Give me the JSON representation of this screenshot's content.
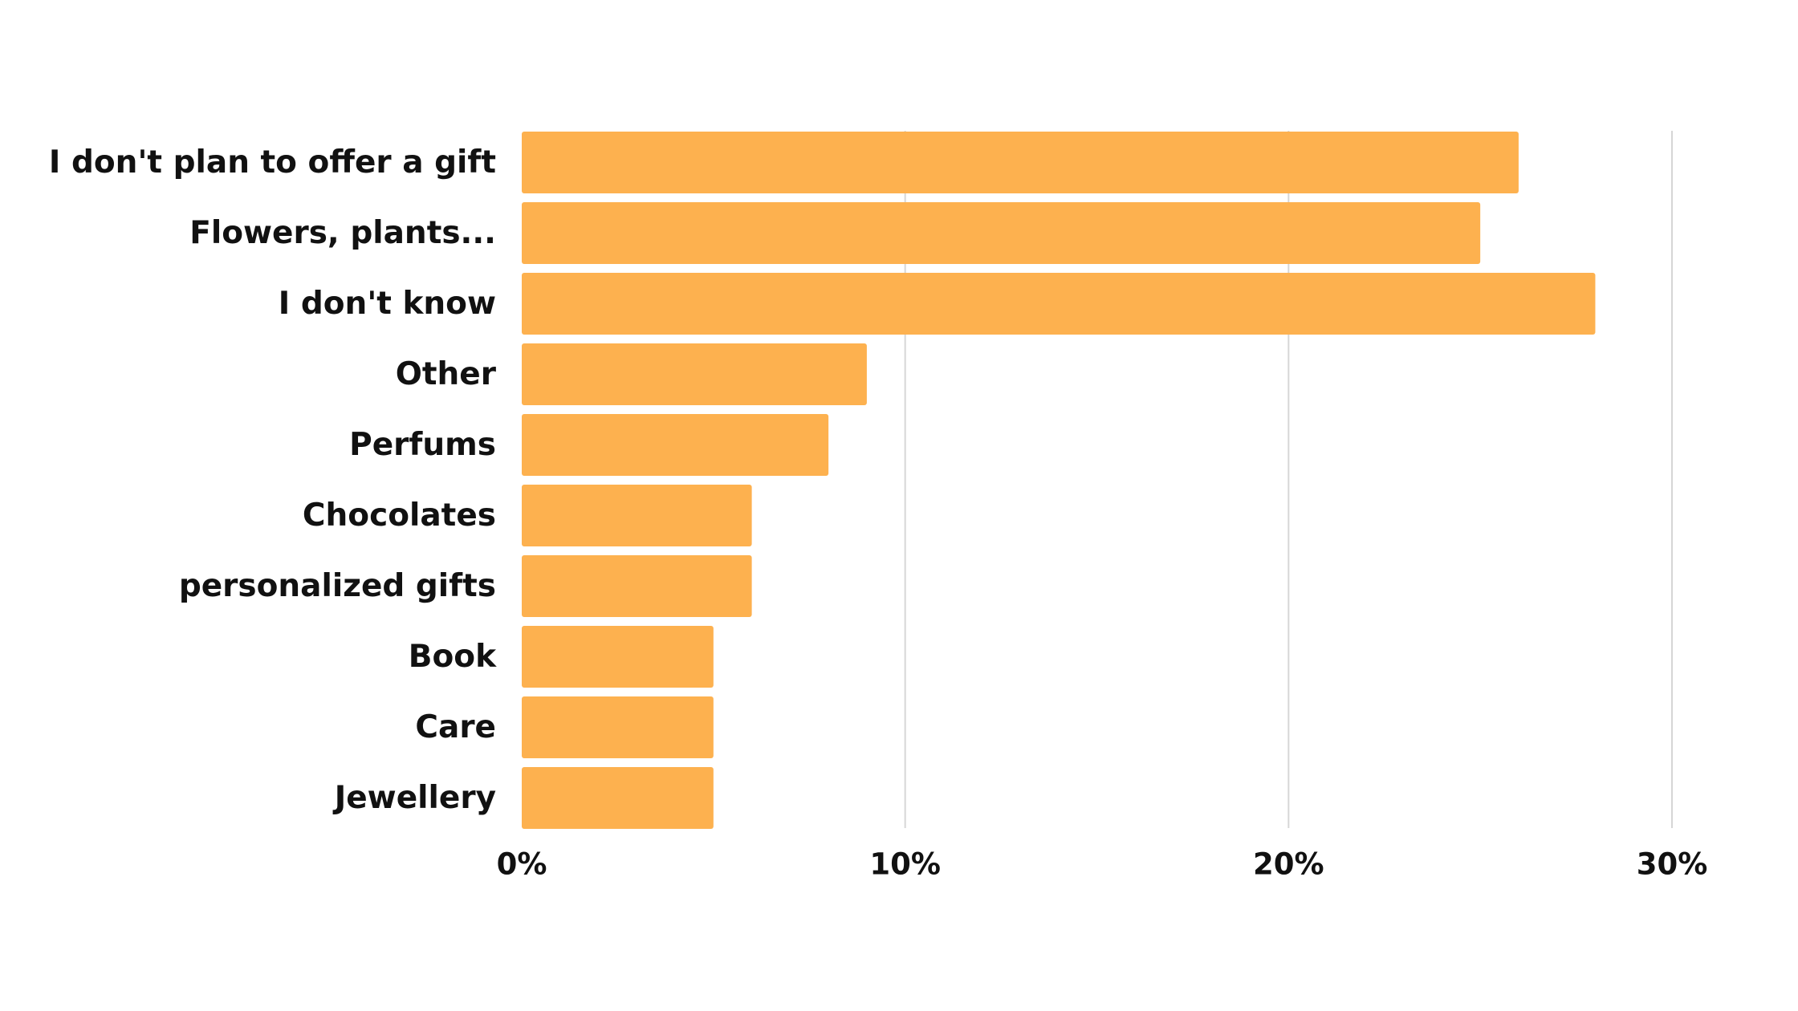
{
  "chart_data": {
    "type": "bar",
    "orientation": "horizontal",
    "title": "",
    "xlabel": "",
    "ylabel": "",
    "categories": [
      "I don't plan to offer a gift",
      "Flowers, plants...",
      "I don't know",
      "Other",
      "Perfums",
      "Chocolates",
      "personalized gifts",
      "Book",
      "Care",
      "Jewellery"
    ],
    "values": [
      26,
      25,
      28,
      9,
      8,
      6,
      6,
      5,
      5,
      5
    ],
    "xlim": [
      0,
      30
    ],
    "ticks": [
      0,
      10,
      20,
      30
    ],
    "tick_labels": [
      "0%",
      "10%",
      "20%",
      "30%"
    ],
    "bar_color": "#FDB14F",
    "grid_color": "#D6D6D6",
    "grid": true,
    "legend": "none"
  }
}
